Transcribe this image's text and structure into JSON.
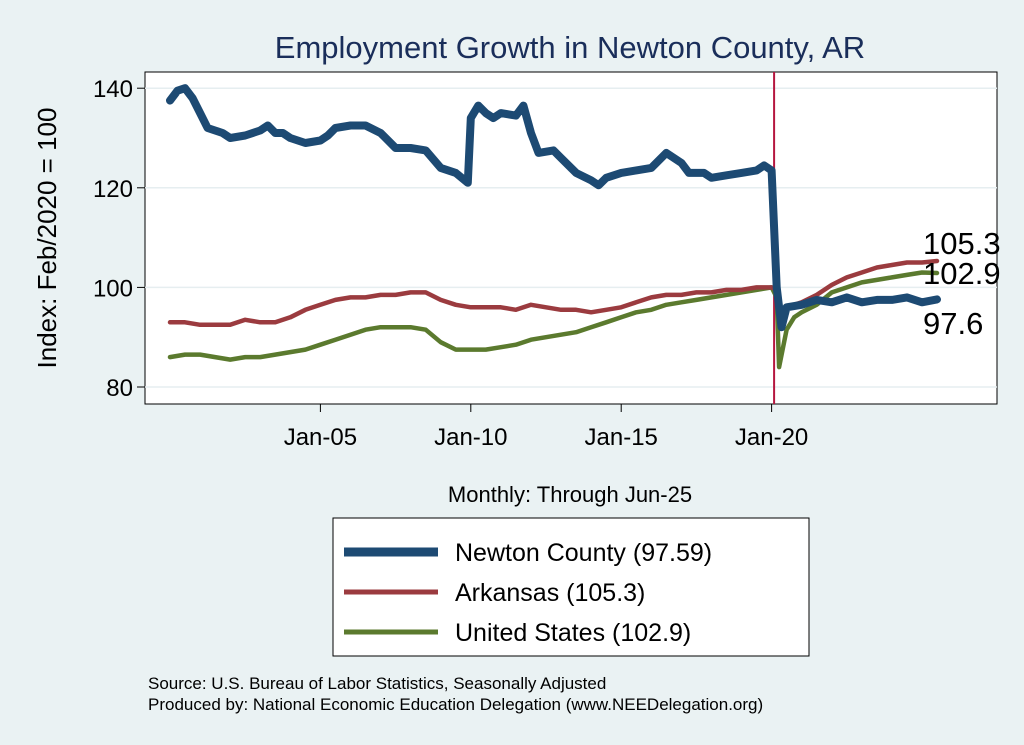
{
  "chart_data": {
    "type": "line",
    "title": "Employment Growth in Newton  County, AR",
    "ylabel": "Index: Feb/2020 = 100",
    "xlabel": "Monthly: Through Jun-25",
    "x_range": [
      "Jan-2000",
      "Jun-2025"
    ],
    "ylim": [
      77,
      143
    ],
    "y_ticks": [
      {
        "value": 80,
        "label": "80"
      },
      {
        "value": 100,
        "label": "100"
      },
      {
        "value": 120,
        "label": "120"
      },
      {
        "value": 140,
        "label": "140"
      }
    ],
    "x_ticks": [
      {
        "value": 2005,
        "label": "Jan-05"
      },
      {
        "value": 2010,
        "label": "Jan-10"
      },
      {
        "value": 2015,
        "label": "Jan-15"
      },
      {
        "value": 2020,
        "label": "Jan-20"
      }
    ],
    "grid": "horizontal",
    "reference_line": {
      "x": 2020.083,
      "color": "#b5163f"
    },
    "series": [
      {
        "name": "Newton  County (97.59)",
        "color": "#1d4a73",
        "end_label": "97.6",
        "points": [
          [
            2000.0,
            137.5
          ],
          [
            2000.25,
            139.5
          ],
          [
            2000.5,
            140
          ],
          [
            2000.75,
            138
          ],
          [
            2001.0,
            135
          ],
          [
            2001.25,
            132
          ],
          [
            2001.5,
            131.5
          ],
          [
            2001.75,
            131
          ],
          [
            2002.0,
            130
          ],
          [
            2002.5,
            130.5
          ],
          [
            2003.0,
            131.5
          ],
          [
            2003.25,
            132.5
          ],
          [
            2003.5,
            131
          ],
          [
            2003.75,
            131
          ],
          [
            2004.0,
            130
          ],
          [
            2004.5,
            129
          ],
          [
            2005.0,
            129.5
          ],
          [
            2005.25,
            130.5
          ],
          [
            2005.5,
            132
          ],
          [
            2006.0,
            132.5
          ],
          [
            2006.5,
            132.5
          ],
          [
            2007.0,
            131
          ],
          [
            2007.5,
            128
          ],
          [
            2008.0,
            128
          ],
          [
            2008.5,
            127.5
          ],
          [
            2009.0,
            124
          ],
          [
            2009.5,
            123
          ],
          [
            2009.9,
            121
          ],
          [
            2010.0,
            134
          ],
          [
            2010.25,
            136.5
          ],
          [
            2010.5,
            135
          ],
          [
            2010.75,
            134
          ],
          [
            2011.0,
            135
          ],
          [
            2011.5,
            134.5
          ],
          [
            2011.75,
            136.5
          ],
          [
            2012.0,
            131
          ],
          [
            2012.25,
            127
          ],
          [
            2012.75,
            127.5
          ],
          [
            2013.0,
            126
          ],
          [
            2013.5,
            123
          ],
          [
            2014.0,
            121.5
          ],
          [
            2014.25,
            120.5
          ],
          [
            2014.5,
            122
          ],
          [
            2015.0,
            123
          ],
          [
            2015.5,
            123.5
          ],
          [
            2016.0,
            124
          ],
          [
            2016.5,
            127
          ],
          [
            2017.0,
            125
          ],
          [
            2017.25,
            123
          ],
          [
            2017.75,
            123
          ],
          [
            2018.0,
            122
          ],
          [
            2018.5,
            122.5
          ],
          [
            2019.0,
            123
          ],
          [
            2019.5,
            123.5
          ],
          [
            2019.75,
            124.5
          ],
          [
            2020.0,
            123.5
          ],
          [
            2020.17,
            100
          ],
          [
            2020.33,
            92
          ],
          [
            2020.5,
            96
          ],
          [
            2021.0,
            96.5
          ],
          [
            2021.5,
            97.5
          ],
          [
            2022.0,
            97
          ],
          [
            2022.5,
            98
          ],
          [
            2023.0,
            97
          ],
          [
            2023.5,
            97.5
          ],
          [
            2024.0,
            97.5
          ],
          [
            2024.5,
            98
          ],
          [
            2025.0,
            97
          ],
          [
            2025.5,
            97.6
          ]
        ]
      },
      {
        "name": "Arkansas (105.3)",
        "color": "#9b3b3f",
        "end_label": "105.3",
        "points": [
          [
            2000.0,
            93
          ],
          [
            2000.5,
            93
          ],
          [
            2001.0,
            92.5
          ],
          [
            2001.5,
            92.5
          ],
          [
            2002.0,
            92.5
          ],
          [
            2002.5,
            93.5
          ],
          [
            2003.0,
            93
          ],
          [
            2003.5,
            93
          ],
          [
            2004.0,
            94
          ],
          [
            2004.5,
            95.5
          ],
          [
            2005.0,
            96.5
          ],
          [
            2005.5,
            97.5
          ],
          [
            2006.0,
            98
          ],
          [
            2006.5,
            98
          ],
          [
            2007.0,
            98.5
          ],
          [
            2007.5,
            98.5
          ],
          [
            2008.0,
            99
          ],
          [
            2008.5,
            99
          ],
          [
            2009.0,
            97.5
          ],
          [
            2009.5,
            96.5
          ],
          [
            2010.0,
            96
          ],
          [
            2010.5,
            96
          ],
          [
            2011.0,
            96
          ],
          [
            2011.5,
            95.5
          ],
          [
            2012.0,
            96.5
          ],
          [
            2012.5,
            96
          ],
          [
            2013.0,
            95.5
          ],
          [
            2013.5,
            95.5
          ],
          [
            2014.0,
            95
          ],
          [
            2014.5,
            95.5
          ],
          [
            2015.0,
            96
          ],
          [
            2015.5,
            97
          ],
          [
            2016.0,
            98
          ],
          [
            2016.5,
            98.5
          ],
          [
            2017.0,
            98.5
          ],
          [
            2017.5,
            99
          ],
          [
            2018.0,
            99
          ],
          [
            2018.5,
            99.5
          ],
          [
            2019.0,
            99.5
          ],
          [
            2019.5,
            100
          ],
          [
            2020.0,
            100
          ],
          [
            2020.17,
            99.5
          ],
          [
            2020.33,
            94
          ],
          [
            2020.5,
            96
          ],
          [
            2021.0,
            97
          ],
          [
            2021.5,
            98.5
          ],
          [
            2022.0,
            100.5
          ],
          [
            2022.5,
            102
          ],
          [
            2023.0,
            103
          ],
          [
            2023.5,
            104
          ],
          [
            2024.0,
            104.5
          ],
          [
            2024.5,
            105
          ],
          [
            2025.0,
            105
          ],
          [
            2025.5,
            105.3
          ]
        ]
      },
      {
        "name": "United States (102.9)",
        "color": "#5b7a2e",
        "end_label": "102.9",
        "points": [
          [
            2000.0,
            86
          ],
          [
            2000.5,
            86.5
          ],
          [
            2001.0,
            86.5
          ],
          [
            2001.5,
            86
          ],
          [
            2002.0,
            85.5
          ],
          [
            2002.5,
            86
          ],
          [
            2003.0,
            86
          ],
          [
            2003.5,
            86.5
          ],
          [
            2004.0,
            87
          ],
          [
            2004.5,
            87.5
          ],
          [
            2005.0,
            88.5
          ],
          [
            2005.5,
            89.5
          ],
          [
            2006.0,
            90.5
          ],
          [
            2006.5,
            91.5
          ],
          [
            2007.0,
            92
          ],
          [
            2007.5,
            92
          ],
          [
            2008.0,
            92
          ],
          [
            2008.5,
            91.5
          ],
          [
            2009.0,
            89
          ],
          [
            2009.5,
            87.5
          ],
          [
            2010.0,
            87.5
          ],
          [
            2010.5,
            87.5
          ],
          [
            2011.0,
            88
          ],
          [
            2011.5,
            88.5
          ],
          [
            2012.0,
            89.5
          ],
          [
            2012.5,
            90
          ],
          [
            2013.0,
            90.5
          ],
          [
            2013.5,
            91
          ],
          [
            2014.0,
            92
          ],
          [
            2014.5,
            93
          ],
          [
            2015.0,
            94
          ],
          [
            2015.5,
            95
          ],
          [
            2016.0,
            95.5
          ],
          [
            2016.5,
            96.5
          ],
          [
            2017.0,
            97
          ],
          [
            2017.5,
            97.5
          ],
          [
            2018.0,
            98
          ],
          [
            2018.5,
            98.5
          ],
          [
            2019.0,
            99
          ],
          [
            2019.5,
            99.5
          ],
          [
            2020.0,
            100
          ],
          [
            2020.17,
            98
          ],
          [
            2020.25,
            84
          ],
          [
            2020.5,
            91.5
          ],
          [
            2020.75,
            94
          ],
          [
            2021.0,
            95
          ],
          [
            2021.5,
            96.5
          ],
          [
            2022.0,
            99
          ],
          [
            2022.5,
            100
          ],
          [
            2023.0,
            101
          ],
          [
            2023.5,
            101.5
          ],
          [
            2024.0,
            102
          ],
          [
            2024.5,
            102.5
          ],
          [
            2025.0,
            103
          ],
          [
            2025.5,
            102.9
          ]
        ]
      }
    ],
    "legend": {
      "placement": "bottom"
    },
    "source_lines": [
      "Source: U.S. Bureau of Labor Statistics, Seasonally Adjusted",
      "Produced by: National Economic Education Delegation (www.NEEDelegation.org)"
    ]
  }
}
